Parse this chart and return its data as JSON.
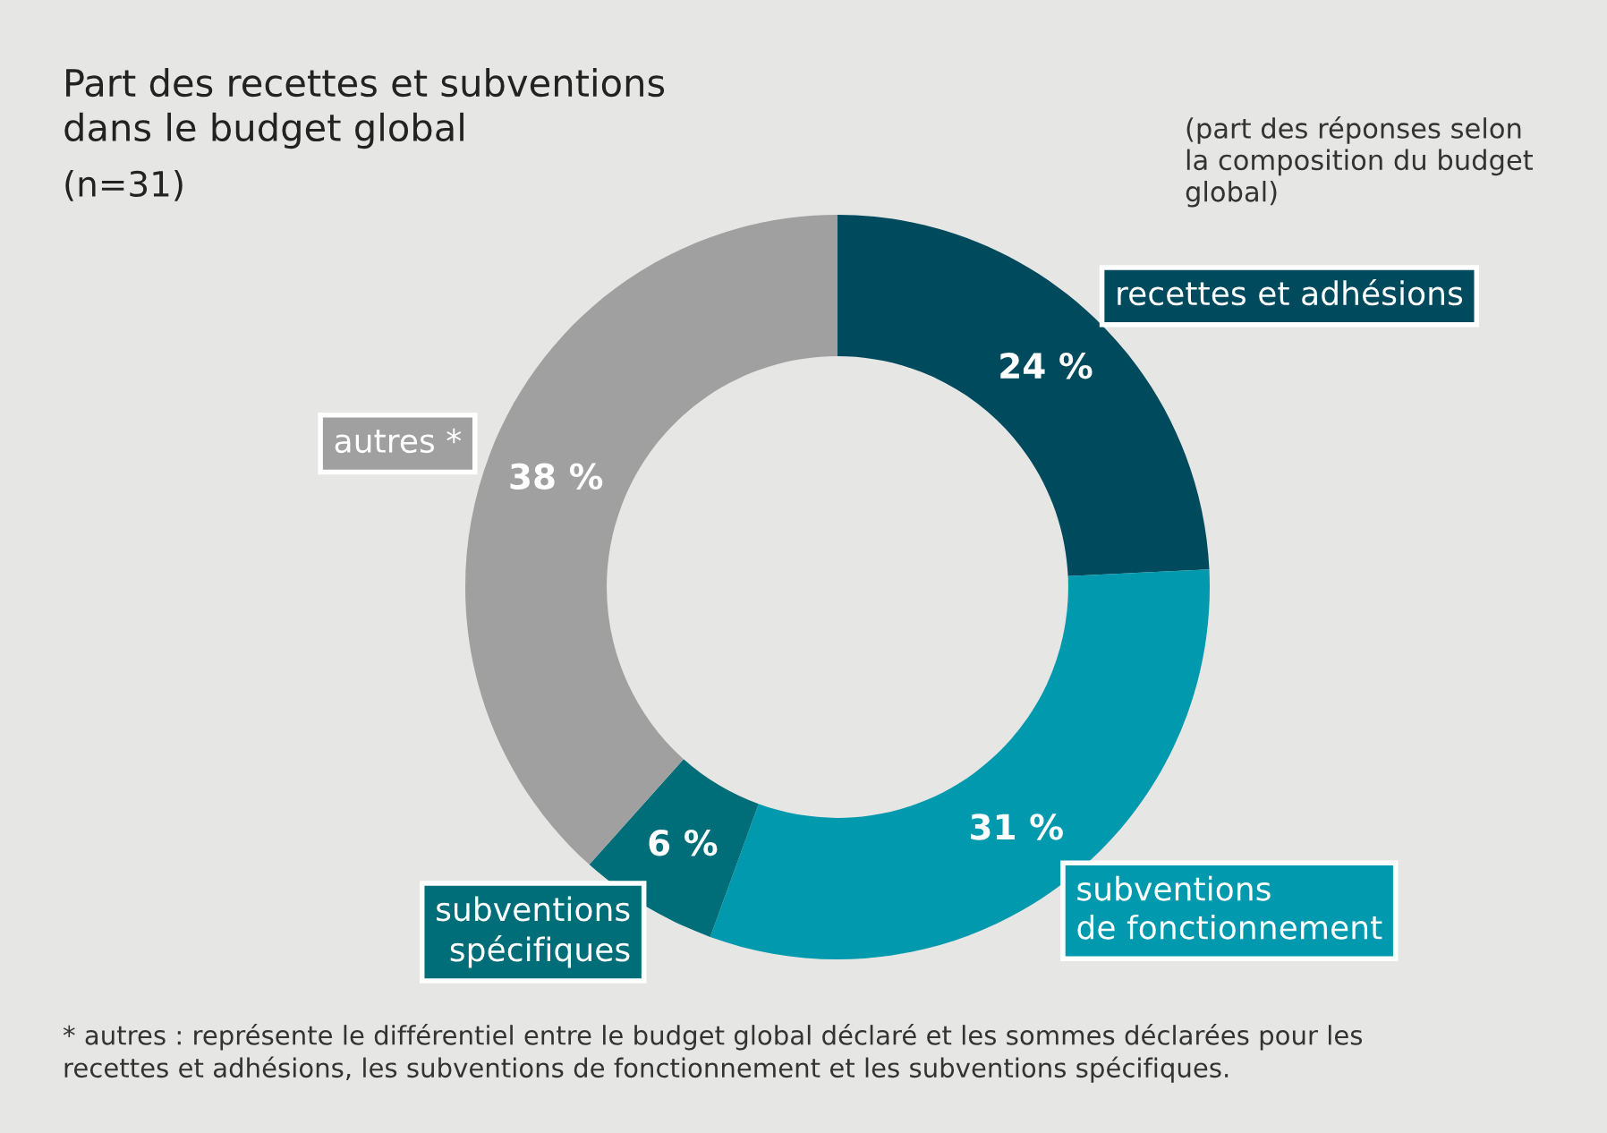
{
  "chart_data": {
    "type": "donut",
    "title": "Part des recettes et subventions\ndans le budget global",
    "subtitle": "(n=31)",
    "categories": [
      "recettes et adhésions",
      "subventions\nde fonctionnement",
      "subventions\nspécifiques",
      "autres *"
    ],
    "values": [
      24,
      31,
      6,
      38
    ],
    "value_labels": [
      "24 %",
      "31 %",
      "6 %",
      "38 %"
    ],
    "colors": [
      "#004a5e",
      "#0099ad",
      "#006e78",
      "#a0a0a0"
    ],
    "annotations": [
      "(part des réponses selon\nla composition du budget\nglobal)",
      "* autres : représente le différentiel entre le budget global déclaré et les sommes déclarées pour les\nrecettes et adhésions, les subventions de fonctionnement et les subventions spécifiques."
    ],
    "legend": false
  }
}
